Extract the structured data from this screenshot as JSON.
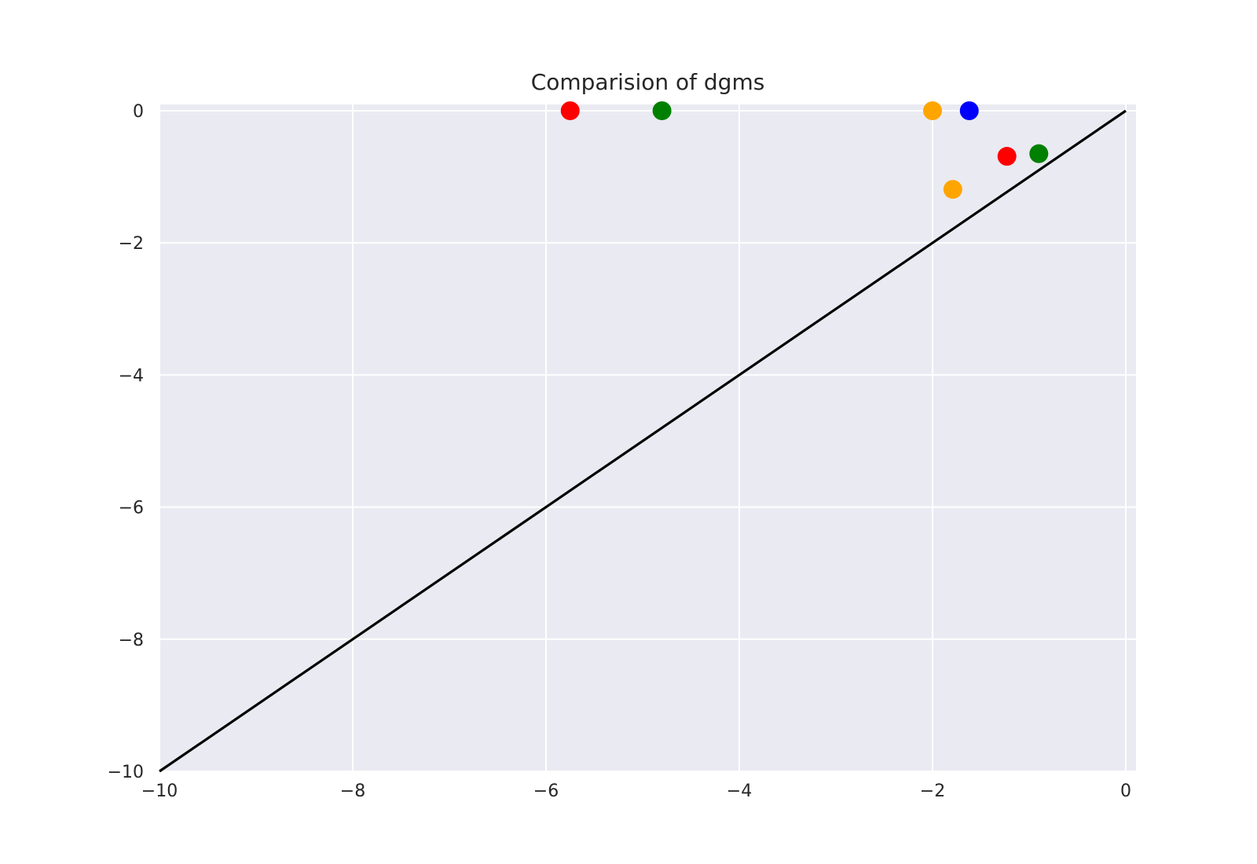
{
  "chart_data": {
    "type": "scatter",
    "title": "Comparision of dgms",
    "xlabel": "",
    "ylabel": "",
    "xlim": [
      -10,
      0.1
    ],
    "ylim": [
      -10,
      0.1
    ],
    "xticks": [
      -10,
      -8,
      -6,
      -4,
      -2,
      0
    ],
    "yticks": [
      0,
      -2,
      -4,
      -6,
      -8,
      -10
    ],
    "xtick_labels": [
      "−10",
      "−8",
      "−6",
      "−4",
      "−2",
      "0"
    ],
    "ytick_labels": [
      "0",
      "−2",
      "−4",
      "−6",
      "−8",
      "−10"
    ],
    "grid": true,
    "background": "#eaeaf2",
    "grid_color": "#ffffff",
    "diagonal": {
      "from": [
        -10,
        -10
      ],
      "to": [
        0,
        0
      ],
      "color": "#000000"
    },
    "points": [
      {
        "x": -5.75,
        "y": 0.0,
        "color": "#ff0000"
      },
      {
        "x": -4.8,
        "y": 0.0,
        "color": "#008000"
      },
      {
        "x": -2.0,
        "y": 0.0,
        "color": "#ffa500"
      },
      {
        "x": -1.62,
        "y": 0.0,
        "color": "#0000ff"
      },
      {
        "x": -1.23,
        "y": -0.69,
        "color": "#ff0000"
      },
      {
        "x": -0.9,
        "y": -0.65,
        "color": "#008000"
      },
      {
        "x": -1.79,
        "y": -1.19,
        "color": "#ffa500"
      }
    ]
  }
}
